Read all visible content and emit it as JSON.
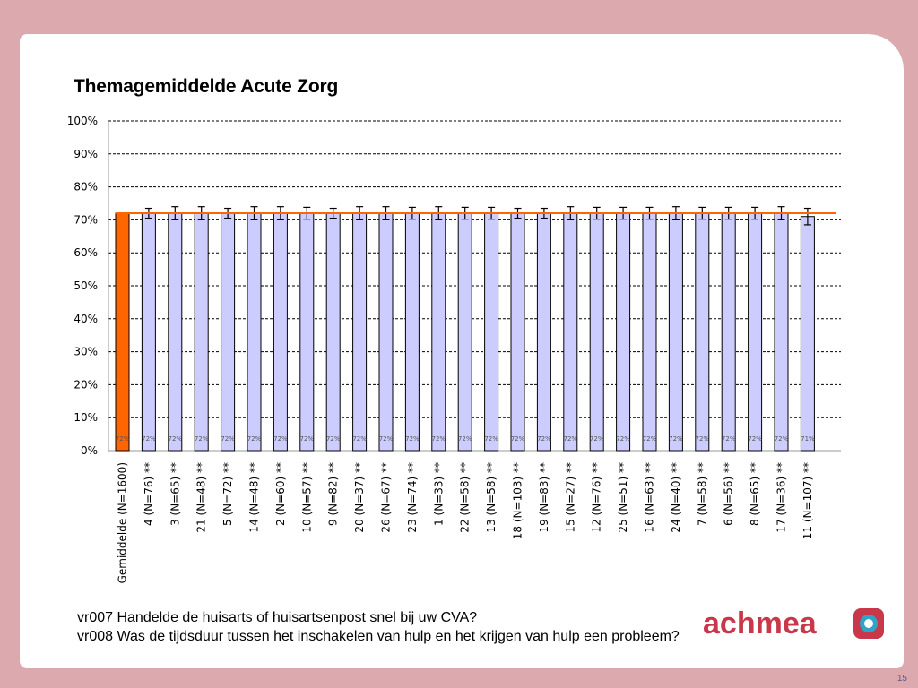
{
  "slide": {
    "title": "Themagemiddelde Acute Zorg",
    "caption_line1": "vr007 Handelde de huisarts of huisartsenpost snel bij uw CVA?",
    "caption_line2": "vr008 Was de tijdsduur tussen het inschakelen van hulp en het krijgen van hulp een probleem?",
    "page_number": "15",
    "logo_text": "achmea"
  },
  "colors": {
    "background": "#dca9ae",
    "average_bar": "#ff6600",
    "group_bar": "#ccccff",
    "reference_line": "#ff6600",
    "logo_text": "#c8374a",
    "logo_mark": "#c8374a",
    "logo_mark_inner": "#2ba6c9"
  },
  "chart_data": {
    "type": "bar",
    "title": "",
    "xlabel": "",
    "ylabel": "",
    "ylim": [
      0,
      100
    ],
    "y_ticks": [
      "0%",
      "10%",
      "20%",
      "30%",
      "40%",
      "50%",
      "60%",
      "70%",
      "80%",
      "90%",
      "100%"
    ],
    "grid": "dashed horizontal",
    "reference_line_value": 72,
    "categories": [
      "Gemiddelde (N=1600)",
      "4 (N=76) **",
      "3 (N=65) **",
      "21 (N=48) **",
      "5 (N=72) **",
      "14 (N=48) **",
      "2 (N=60) **",
      "10 (N=57) **",
      "9 (N=82) **",
      "20 (N=37) **",
      "26 (N=67) **",
      "23 (N=74) **",
      "1 (N=33) **",
      "22 (N=58) **",
      "13 (N=58) **",
      "18 (N=103) **",
      "19 (N=83) **",
      "15 (N=27) **",
      "12 (N=76) **",
      "25 (N=51) **",
      "16 (N=63) **",
      "24 (N=40) **",
      "7 (N=58) **",
      "6 (N=56) **",
      "8 (N=65) **",
      "17 (N=36) **",
      "11 (N=107) **"
    ],
    "values": [
      72,
      72,
      72,
      72,
      72,
      72,
      72,
      72,
      72,
      72,
      72,
      72,
      72,
      72,
      72,
      72,
      72,
      72,
      72,
      72,
      72,
      72,
      72,
      72,
      72,
      72,
      71
    ],
    "data_labels": [
      "72%",
      "72%",
      "72%",
      "72%",
      "72%",
      "72%",
      "72%",
      "72%",
      "72%",
      "72%",
      "72%",
      "72%",
      "72%",
      "72%",
      "72%",
      "72%",
      "72%",
      "72%",
      "72%",
      "72%",
      "72%",
      "72%",
      "72%",
      "72%",
      "72%",
      "72%",
      "71%"
    ],
    "error": [
      0,
      1.5,
      2,
      2,
      1.5,
      2,
      2,
      1.8,
      1.5,
      2,
      2,
      1.8,
      2,
      1.8,
      1.8,
      1.5,
      1.5,
      2,
      1.8,
      1.8,
      1.8,
      2,
      1.8,
      1.8,
      1.8,
      2,
      2.5
    ]
  }
}
